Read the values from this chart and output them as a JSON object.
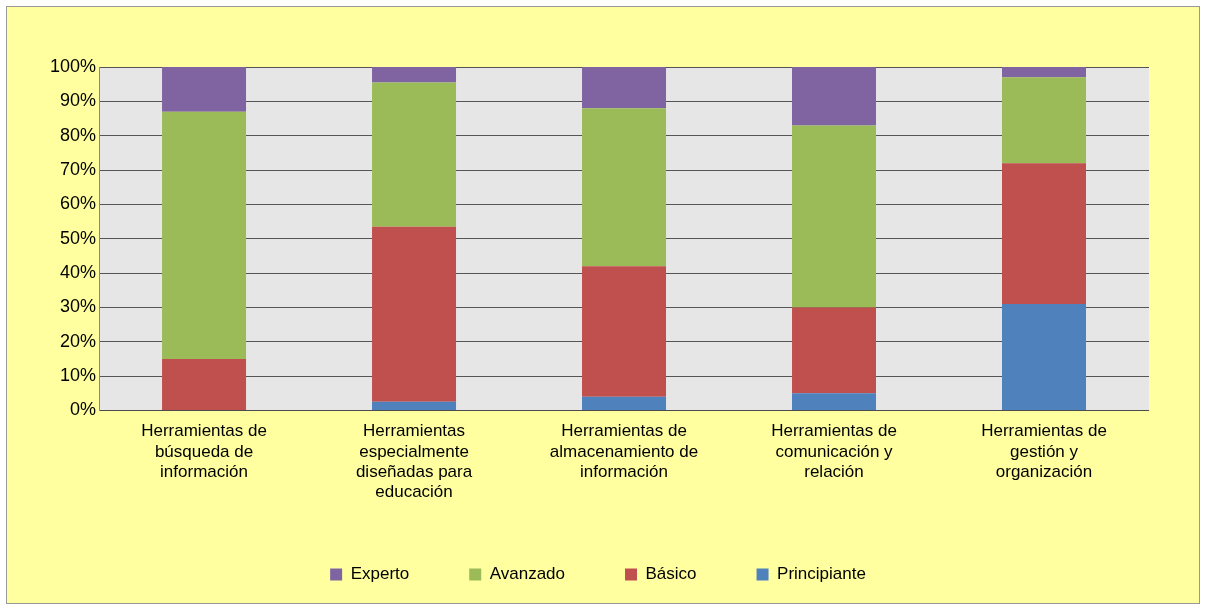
{
  "chart_data": {
    "type": "bar",
    "stacked": true,
    "categories": [
      "Herramientas de búsqueda de información",
      "Herramientas especialmente diseñadas para educación",
      "Herramientas de almacenamiento de información",
      "Herramientas de comunicación y relación",
      "Herramientas de gestión y organización"
    ],
    "series": [
      {
        "name": "Principiante",
        "color": "#4f81bd",
        "values": [
          0,
          2.5,
          4,
          5,
          31
        ]
      },
      {
        "name": "Básico",
        "color": "#c0504d",
        "values": [
          15,
          51,
          38,
          25,
          41
        ]
      },
      {
        "name": "Avanzado",
        "color": "#9bbb59",
        "values": [
          72,
          42,
          46,
          53,
          25
        ]
      },
      {
        "name": "Experto",
        "color": "#8064a2",
        "values": [
          13,
          4.5,
          12,
          17,
          3
        ]
      }
    ],
    "ylim": [
      0,
      100
    ],
    "yticks": [
      {
        "value": 0,
        "label": "0%"
      },
      {
        "value": 10,
        "label": "10%"
      },
      {
        "value": 20,
        "label": "20%"
      },
      {
        "value": 30,
        "label": "30%"
      },
      {
        "value": 40,
        "label": "40%"
      },
      {
        "value": 50,
        "label": "50%"
      },
      {
        "value": 60,
        "label": "60%"
      },
      {
        "value": 70,
        "label": "70%"
      },
      {
        "value": 80,
        "label": "80%"
      },
      {
        "value": 90,
        "label": "90%"
      },
      {
        "value": 100,
        "label": "100%"
      }
    ],
    "grid": "y",
    "legend": "bottom"
  }
}
